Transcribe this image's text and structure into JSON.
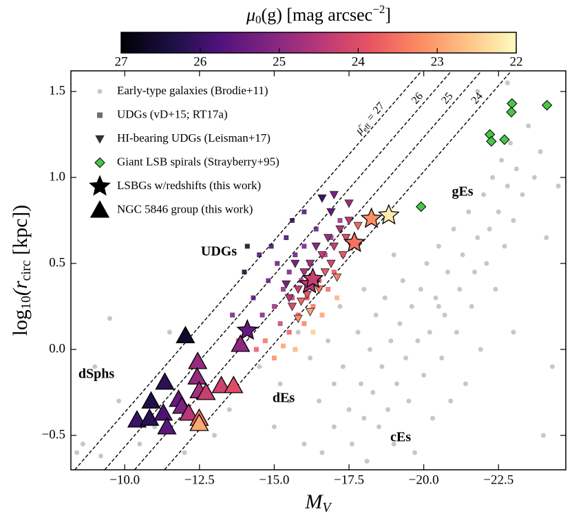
{
  "chart_data": {
    "type": "scatter",
    "xlabel": {
      "main": "M",
      "sub": "V"
    },
    "ylabel": {
      "pre": "log",
      "sub1": "10",
      "mid": "(r",
      "sub2": "circ",
      "post": " [kpc])"
    },
    "xlim": [
      -8.2,
      -24.75
    ],
    "ylim": [
      -0.7,
      1.62
    ],
    "xticks": [
      {
        "value": -10,
        "label": "−10.0"
      },
      {
        "value": -12.5,
        "label": "−12.5"
      },
      {
        "value": -15,
        "label": "−15.0"
      },
      {
        "value": -17.5,
        "label": "−17.5"
      },
      {
        "value": -20,
        "label": "−20.0"
      },
      {
        "value": -22.5,
        "label": "−22.5"
      }
    ],
    "yticks": [
      {
        "value": -0.5,
        "label": "−0.5"
      },
      {
        "value": 0,
        "label": "0.0"
      },
      0.5,
      {
        "value": 1,
        "label": "1.0"
      },
      1.5
    ],
    "legend": "upper left",
    "colorbar": {
      "colormap": "magma",
      "clim": [
        27,
        22
      ],
      "ticks": [
        27,
        26,
        25,
        24,
        23,
        22
      ],
      "label": {
        "sym": "μ",
        "sub": "0",
        "arg": "(g) [mag arcsec",
        "sup": "−2",
        "end": "]"
      }
    },
    "reference_lines": {
      "prefix": {
        "symbol": "μ̄",
        "subscript": "eff",
        "sign": "="
      },
      "lines": [
        {
          "label": "27",
          "x": [
            -8.33,
            -19.93
          ],
          "values": [
            -0.7,
            1.62
          ]
        },
        {
          "label": "26",
          "x": [
            -9.33,
            -20.93
          ],
          "values": [
            -0.7,
            1.62
          ]
        },
        {
          "label": "25",
          "x": [
            -10.33,
            -21.93
          ],
          "values": [
            -0.7,
            1.62
          ]
        },
        {
          "label": "24",
          "x": [
            -11.33,
            -22.93
          ],
          "values": [
            -0.7,
            1.62
          ]
        }
      ]
    },
    "annotations": [
      "UDGs",
      "gEs",
      "dSphs",
      "dEs",
      "cEs"
    ],
    "series": [
      {
        "name": "Early-type galaxies (Brodie+11)",
        "marker": "circle",
        "color": "#b4b4b4",
        "x": [
          -8.4,
          -8.6,
          -9.2,
          -9.0,
          -9.5,
          -9.8,
          -10.5,
          -11.0,
          -11.5,
          -12.0,
          -13.0,
          -13.5,
          -14.0,
          -14.5,
          -15.0,
          -15.2,
          -15.5,
          -15.8,
          -16.0,
          -16.2,
          -16.5,
          -16.6,
          -16.8,
          -17.0,
          -17.0,
          -17.2,
          -17.3,
          -17.5,
          -17.6,
          -17.8,
          -17.9,
          -18.0,
          -18.1,
          -18.2,
          -18.3,
          -18.4,
          -18.5,
          -18.6,
          -18.7,
          -18.8,
          -18.9,
          -19.0,
          -19.1,
          -19.2,
          -19.3,
          -19.4,
          -19.5,
          -19.6,
          -19.7,
          -19.8,
          -19.9,
          -20.0,
          -20.1,
          -20.2,
          -20.3,
          -20.4,
          -20.5,
          -20.6,
          -20.7,
          -20.8,
          -20.9,
          -21.0,
          -21.1,
          -21.2,
          -21.3,
          -21.4,
          -21.5,
          -21.6,
          -21.7,
          -21.8,
          -21.9,
          -22.0,
          -22.1,
          -22.2,
          -22.3,
          -22.4,
          -22.5,
          -22.6,
          -22.7,
          -22.8,
          -22.9,
          -23.0,
          -23.1,
          -23.3,
          -23.5,
          -23.7,
          -23.9,
          -24.1,
          -24.3,
          -24.5,
          -22.8,
          -21.8,
          -20.5,
          -19.0,
          -18.0,
          -24.0,
          -23.0
        ],
        "values": [
          -0.6,
          -0.55,
          -0.62,
          -0.1,
          0.18,
          -0.3,
          -0.55,
          -0.45,
          0.1,
          -0.6,
          -0.5,
          -0.35,
          0.45,
          -0.1,
          -0.45,
          -0.2,
          -0.3,
          0.1,
          -0.55,
          -0.05,
          -0.3,
          -0.6,
          0.05,
          -0.2,
          -0.45,
          0.25,
          -0.1,
          -0.35,
          -0.55,
          0.1,
          -0.2,
          -0.4,
          -0.65,
          0.0,
          -0.25,
          0.2,
          -0.45,
          -0.1,
          0.3,
          -0.35,
          0.05,
          -0.55,
          -0.2,
          0.15,
          0.4,
          -0.05,
          -0.3,
          0.25,
          -0.6,
          0.05,
          0.35,
          -0.15,
          0.5,
          0.1,
          -0.4,
          0.3,
          0.6,
          -0.05,
          0.2,
          0.45,
          -0.3,
          0.7,
          0.1,
          0.35,
          0.55,
          -0.2,
          0.8,
          0.25,
          0.45,
          0.65,
          0.0,
          0.9,
          0.5,
          0.7,
          1.0,
          0.35,
          0.8,
          1.1,
          0.6,
          0.95,
          1.2,
          0.75,
          1.05,
          0.9,
          1.3,
          1.0,
          1.15,
          0.65,
          -0.1,
          0.95,
          1.55,
          1.5,
          0.25,
          0.55,
          0.35,
          -0.5,
          0.1
        ]
      },
      {
        "name": "UDGs (vD+15; RT17a)",
        "marker": "square",
        "color": "#555555",
        "x": [
          -14.0,
          -14.3,
          -14.5,
          -14.6,
          -14.8,
          -14.9,
          -15.0,
          -15.1,
          -15.2,
          -15.3,
          -15.4,
          -15.5,
          -15.5,
          -15.6,
          -15.7,
          -15.8,
          -15.9,
          -16.0,
          -16.0,
          -16.1,
          -16.2,
          -16.3,
          -16.4,
          -16.5,
          -16.6,
          -16.7,
          -16.8,
          -16.9,
          -17.0,
          -17.1,
          -17.2,
          -17.3,
          -14.2,
          -14.4,
          -14.7,
          -15.0,
          -15.3,
          -13.8,
          -15.7,
          -16.3,
          -13.6,
          -14.1,
          -15.6,
          -16.0
        ],
        "values": [
          0.45,
          0.3,
          0.55,
          0.2,
          0.4,
          0.6,
          0.25,
          0.5,
          0.15,
          0.35,
          0.65,
          0.1,
          0.45,
          0.3,
          0.55,
          0.2,
          0.4,
          0.15,
          0.6,
          0.3,
          0.5,
          0.25,
          0.7,
          0.4,
          0.2,
          0.55,
          0.35,
          0.65,
          0.45,
          0.3,
          0.75,
          0.55,
          0.08,
          0.0,
          0.05,
          -0.05,
          0.02,
          0.05,
          0.0,
          0.1,
          0.2,
          0.6,
          0.75,
          0.8
        ],
        "color_values": [
          26.5,
          25.8,
          26.0,
          25.2,
          25.5,
          26.2,
          24.8,
          25.6,
          24.2,
          25.0,
          26.0,
          23.8,
          25.3,
          24.6,
          25.5,
          23.9,
          24.7,
          23.3,
          25.4,
          24.0,
          24.8,
          23.5,
          25.6,
          24.2,
          23.0,
          24.6,
          23.6,
          24.9,
          23.9,
          22.8,
          25.0,
          24.0,
          24.5,
          23.8,
          23.5,
          23.2,
          23.0,
          24.2,
          22.8,
          22.5,
          25.3,
          26.8,
          26.3,
          25.9
        ]
      },
      {
        "name": "HI-bearing UDGs (Leisman+17)",
        "marker": "triangle-down",
        "color": "#333333",
        "x": [
          -15.5,
          -15.6,
          -15.8,
          -15.9,
          -16.0,
          -16.1,
          -16.2,
          -16.3,
          -16.4,
          -16.5,
          -16.6,
          -16.7,
          -16.8,
          -16.9,
          -17.0,
          -17.1,
          -17.2,
          -17.3,
          -17.4,
          -17.5,
          -17.6,
          -17.8,
          -16.6,
          -17.0,
          -16.9,
          -15.7,
          -15.4,
          -16.2,
          -15.8,
          -17.5
        ],
        "values": [
          0.3,
          0.25,
          0.35,
          0.28,
          0.45,
          0.32,
          0.5,
          0.4,
          0.6,
          0.35,
          0.55,
          0.45,
          0.65,
          0.5,
          0.6,
          0.42,
          0.7,
          0.55,
          0.65,
          0.75,
          0.6,
          0.72,
          0.88,
          0.9,
          0.8,
          0.5,
          0.38,
          0.22,
          0.18,
          0.85
        ],
        "color_values": [
          24.5,
          24.0,
          24.3,
          23.6,
          24.6,
          23.8,
          24.7,
          24.0,
          25.0,
          23.4,
          24.4,
          23.8,
          24.8,
          24.1,
          24.3,
          23.3,
          24.6,
          23.8,
          24.0,
          24.4,
          23.5,
          23.6,
          26.0,
          25.2,
          25.5,
          25.2,
          25.3,
          23.0,
          23.2,
          24.8
        ]
      },
      {
        "name": "Giant LSB spirals (Strayberry+95)",
        "marker": "diamond",
        "color": "#44c844",
        "x": [
          -19.91,
          -22.95,
          -22.93,
          -22.21,
          -22.26,
          -22.7,
          -24.12
        ],
        "values": [
          0.83,
          1.43,
          1.38,
          1.25,
          1.21,
          1.22,
          1.42
        ]
      },
      {
        "name": "LSBGs w/redshifts (this work)",
        "marker": "star",
        "color": "#000000",
        "x": [
          -14.1,
          -16.18,
          -16.29,
          -17.68,
          -18.25,
          -18.83
        ],
        "values": [
          0.11,
          0.38,
          0.41,
          0.62,
          0.76,
          0.78
        ],
        "color_values": [
          25.5,
          24.5,
          24.3,
          23.5,
          23.2,
          22.2
        ]
      },
      {
        "name": "NGC 5846 group (this work)",
        "marker": "triangle-up",
        "color": "#000000",
        "x": [
          -12.03,
          -11.34,
          -10.88,
          -10.41,
          -10.83,
          -11.29,
          -11.41,
          -11.8,
          -11.91,
          -12.44,
          -12.42,
          -12.49,
          -12.14,
          -12.72,
          -13.23,
          -13.64,
          -13.87,
          -12.49,
          -12.49
        ],
        "values": [
          0.08,
          -0.19,
          -0.3,
          -0.41,
          -0.4,
          -0.37,
          -0.45,
          -0.29,
          -0.33,
          -0.07,
          -0.16,
          -0.24,
          -0.37,
          -0.25,
          -0.21,
          -0.21,
          0.03,
          -0.4,
          -0.43
        ],
        "color_values": [
          26.6,
          26.2,
          26.3,
          26.0,
          26.2,
          25.8,
          25.6,
          25.5,
          25.2,
          24.9,
          24.9,
          24.7,
          24.5,
          24.3,
          24.2,
          24.0,
          25.0,
          23.5,
          22.9
        ]
      }
    ]
  }
}
